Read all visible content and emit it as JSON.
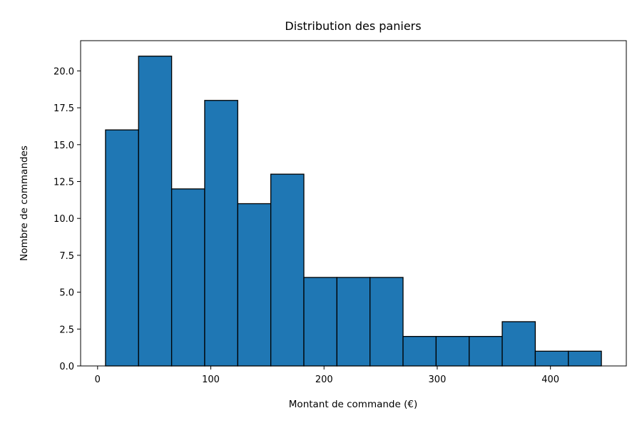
{
  "chart_data": {
    "type": "bar",
    "subtype": "histogram",
    "title": "Distribution des paniers",
    "xlabel": "Montant de commande (€)",
    "ylabel": "Nombre de commandes",
    "bin_edges": [
      7,
      36.2,
      65.4,
      94.6,
      123.8,
      153,
      182.2,
      211.4,
      240.6,
      269.8,
      299,
      328.2,
      357.4,
      386.6,
      415.8,
      445
    ],
    "values": [
      16,
      21,
      12,
      18,
      11,
      13,
      6,
      6,
      6,
      2,
      2,
      2,
      3,
      1,
      1
    ],
    "xlim": [
      -15,
      467
    ],
    "ylim": [
      0,
      22.05
    ],
    "xticks": [
      0,
      100,
      200,
      300,
      400
    ],
    "xtick_labels": [
      "0",
      "100",
      "200",
      "300",
      "400"
    ],
    "yticks": [
      0,
      2.5,
      5,
      7.5,
      10,
      12.5,
      15,
      17.5,
      20
    ],
    "ytick_labels": [
      "0.0",
      "2.5",
      "5.0",
      "7.5",
      "10.0",
      "12.5",
      "15.0",
      "17.5",
      "20.0"
    ],
    "grid": false,
    "legend": "none",
    "colors": {
      "bar_fill": "#1f77b4",
      "bar_edge": "#000000"
    }
  }
}
